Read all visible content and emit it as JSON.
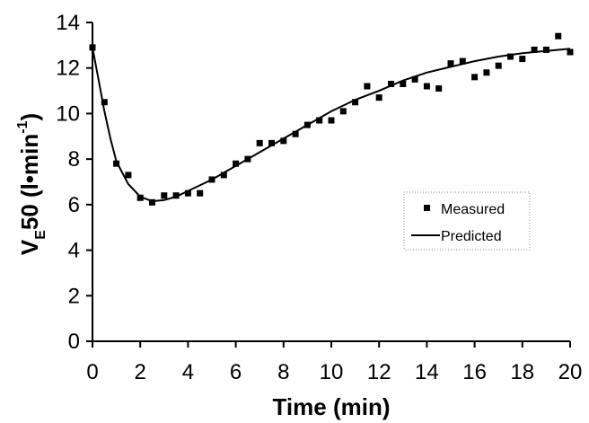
{
  "chart_data": {
    "type": "scatter",
    "xlabel": "Time (min)",
    "ylabel": {
      "main": "V",
      "subscript": "E",
      "after_sub": "50 (l•min",
      "superscript": "-1",
      "close": ")"
    },
    "xlim": [
      0,
      20
    ],
    "ylim": [
      0,
      14
    ],
    "xticks": [
      0,
      2,
      4,
      6,
      8,
      10,
      12,
      14,
      16,
      18,
      20
    ],
    "yticks": [
      0,
      2,
      4,
      6,
      8,
      10,
      12,
      14
    ],
    "grid": false,
    "legend_position": "right-middle",
    "series": [
      {
        "name": "Measured",
        "kind": "scatter",
        "marker": "square",
        "color": "#000000",
        "points": [
          [
            0.0,
            12.9
          ],
          [
            0.5,
            10.5
          ],
          [
            1.0,
            7.8
          ],
          [
            1.5,
            7.3
          ],
          [
            2.0,
            6.3
          ],
          [
            2.5,
            6.1
          ],
          [
            3.0,
            6.4
          ],
          [
            3.5,
            6.4
          ],
          [
            4.0,
            6.5
          ],
          [
            4.5,
            6.5
          ],
          [
            5.0,
            7.1
          ],
          [
            5.5,
            7.3
          ],
          [
            6.0,
            7.8
          ],
          [
            6.5,
            8.0
          ],
          [
            7.0,
            8.7
          ],
          [
            7.5,
            8.7
          ],
          [
            8.0,
            8.8
          ],
          [
            8.5,
            9.1
          ],
          [
            9.0,
            9.5
          ],
          [
            9.5,
            9.7
          ],
          [
            10.0,
            9.7
          ],
          [
            10.5,
            10.1
          ],
          [
            11.0,
            10.5
          ],
          [
            11.5,
            11.2
          ],
          [
            12.0,
            10.7
          ],
          [
            12.5,
            11.3
          ],
          [
            13.0,
            11.3
          ],
          [
            13.5,
            11.5
          ],
          [
            14.0,
            11.2
          ],
          [
            14.5,
            11.1
          ],
          [
            15.0,
            12.2
          ],
          [
            15.5,
            12.3
          ],
          [
            16.0,
            11.6
          ],
          [
            16.5,
            11.8
          ],
          [
            17.0,
            12.1
          ],
          [
            17.5,
            12.5
          ],
          [
            18.0,
            12.4
          ],
          [
            18.5,
            12.8
          ],
          [
            19.0,
            12.8
          ],
          [
            19.5,
            13.4
          ],
          [
            20.0,
            12.7
          ]
        ]
      },
      {
        "name": "Predicted",
        "kind": "line",
        "color": "#000000",
        "points": [
          [
            0.0,
            12.9
          ],
          [
            0.25,
            11.5
          ],
          [
            0.5,
            10.1
          ],
          [
            0.75,
            8.9
          ],
          [
            1.0,
            7.9
          ],
          [
            1.5,
            6.9
          ],
          [
            2.0,
            6.35
          ],
          [
            2.5,
            6.15
          ],
          [
            3.0,
            6.2
          ],
          [
            3.5,
            6.35
          ],
          [
            4.0,
            6.6
          ],
          [
            5.0,
            7.1
          ],
          [
            6.0,
            7.7
          ],
          [
            7.0,
            8.3
          ],
          [
            8.0,
            8.9
          ],
          [
            9.0,
            9.5
          ],
          [
            10.0,
            10.1
          ],
          [
            11.0,
            10.6
          ],
          [
            12.0,
            11.0
          ],
          [
            13.0,
            11.45
          ],
          [
            14.0,
            11.8
          ],
          [
            15.0,
            12.05
          ],
          [
            16.0,
            12.3
          ],
          [
            17.0,
            12.5
          ],
          [
            18.0,
            12.65
          ],
          [
            19.0,
            12.75
          ],
          [
            20.0,
            12.85
          ]
        ]
      }
    ]
  }
}
